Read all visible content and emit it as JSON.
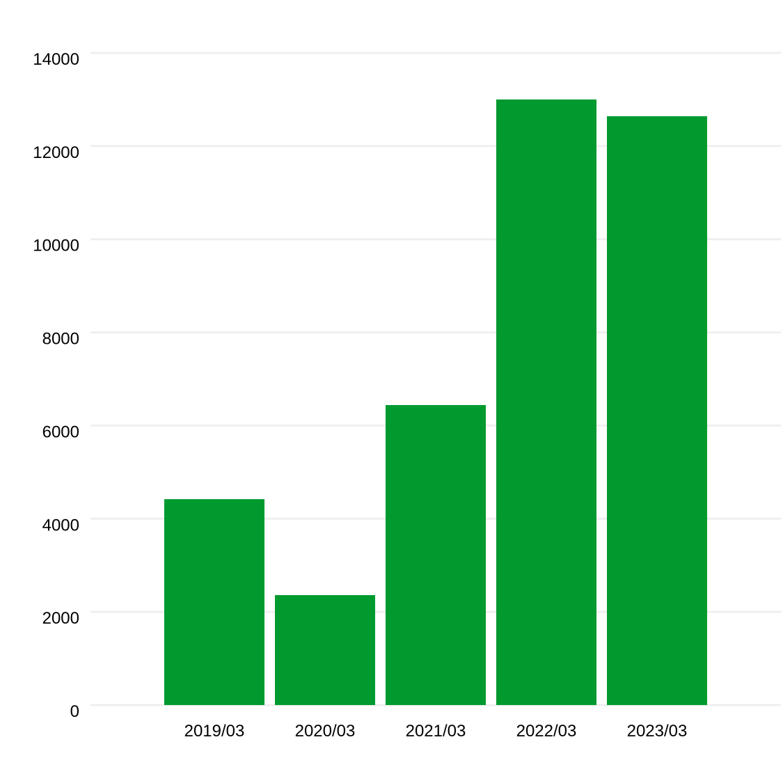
{
  "chart_data": {
    "type": "bar",
    "title": "",
    "xlabel": "",
    "ylabel": "",
    "categories": [
      "2019/03",
      "2020/03",
      "2021/03",
      "2022/03",
      "2023/03"
    ],
    "values": [
      4420,
      2360,
      6440,
      13000,
      12640
    ],
    "ylim": [
      0,
      14000
    ],
    "yticks": [
      "0",
      "2000",
      "4000",
      "6000",
      "8000",
      "10000",
      "12000",
      "14000"
    ],
    "grid": "horizontal",
    "legend": "none",
    "colors": {
      "bar": "#009a2e",
      "grid": "#efefef"
    }
  }
}
